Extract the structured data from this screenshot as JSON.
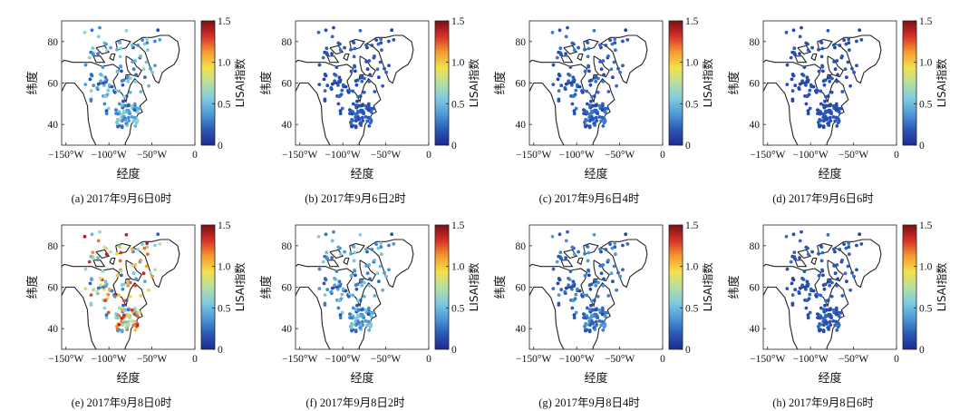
{
  "colors": {
    "land": "#ffffff",
    "coast": "#222222",
    "colormap": [
      "#1e2a8f",
      "#2a58b8",
      "#4d9ad6",
      "#7fcbe0",
      "#b6e0a1",
      "#f3e04a",
      "#f59a2e",
      "#d7302a",
      "#7a0f14"
    ]
  },
  "chart_data": [
    {
      "type": "scatter",
      "caption": "(a) 2017年9月6日0时",
      "xlabel": "经度",
      "ylabel": "纬度",
      "x_ticks": [
        "−150°W",
        "−100°W",
        "−50°W",
        "0"
      ],
      "y_ticks": [
        "40",
        "60",
        "80"
      ],
      "xlim": [
        -155,
        0
      ],
      "ylim": [
        30,
        90
      ],
      "colorbar": {
        "label": "LISAI指数",
        "range": [
          0,
          1.5
        ],
        "ticks": [
          "0",
          "0.5",
          "1.0",
          "1.5"
        ]
      },
      "value_range": [
        0.15,
        0.65
      ]
    },
    {
      "type": "scatter",
      "caption": "(b) 2017年9月6日2时",
      "xlabel": "经度",
      "ylabel": "纬度",
      "x_ticks": [
        "−150°W",
        "−100°W",
        "−50°W",
        "0"
      ],
      "y_ticks": [
        "40",
        "60",
        "80"
      ],
      "xlim": [
        -155,
        0
      ],
      "ylim": [
        30,
        90
      ],
      "colorbar": {
        "label": "LISAI指数",
        "range": [
          0,
          1.5
        ],
        "ticks": [
          "0",
          "0.5",
          "1.0",
          "1.5"
        ]
      },
      "value_range": [
        0.1,
        0.25
      ]
    },
    {
      "type": "scatter",
      "caption": "(c) 2017年9月6日4时",
      "xlabel": "经度",
      "ylabel": "纬度",
      "x_ticks": [
        "−150°W",
        "−100°W",
        "−50°W",
        "0"
      ],
      "y_ticks": [
        "40",
        "60",
        "80"
      ],
      "xlim": [
        -155,
        0
      ],
      "ylim": [
        30,
        90
      ],
      "colorbar": {
        "label": "LISAI指数",
        "range": [
          0,
          1.5
        ],
        "ticks": [
          "0",
          "0.5",
          "1.0",
          "1.5"
        ]
      },
      "value_range": [
        0.1,
        0.3
      ]
    },
    {
      "type": "scatter",
      "caption": "(d) 2017年9月6日6时",
      "xlabel": "经度",
      "ylabel": "纬度",
      "x_ticks": [
        "−150°W",
        "−100°W",
        "−50°W",
        "0"
      ],
      "y_ticks": [
        "40",
        "60",
        "80"
      ],
      "xlim": [
        -155,
        0
      ],
      "ylim": [
        30,
        90
      ],
      "colorbar": {
        "label": "LISAI指数",
        "range": [
          0,
          1.5
        ],
        "ticks": [
          "0",
          "0.5",
          "1.0",
          "1.5"
        ]
      },
      "value_range": [
        0.1,
        0.2
      ]
    },
    {
      "type": "scatter",
      "caption": "(e) 2017年9月8日0时",
      "xlabel": "经度",
      "ylabel": "纬度",
      "x_ticks": [
        "−150°W",
        "−100°W",
        "−50°W",
        "0"
      ],
      "y_ticks": [
        "40",
        "60",
        "80"
      ],
      "xlim": [
        -155,
        0
      ],
      "ylim": [
        30,
        90
      ],
      "colorbar": {
        "label": "LISAI指数",
        "range": [
          0,
          1.5
        ],
        "ticks": [
          "0",
          "0.5",
          "1.0",
          "1.5"
        ]
      },
      "value_range": [
        0.2,
        1.4
      ]
    },
    {
      "type": "scatter",
      "caption": "(f) 2017年9月8日2时",
      "xlabel": "经度",
      "ylabel": "纬度",
      "x_ticks": [
        "−150°W",
        "−100°W",
        "−50°W",
        "0"
      ],
      "y_ticks": [
        "40",
        "60",
        "80"
      ],
      "xlim": [
        -155,
        0
      ],
      "ylim": [
        30,
        90
      ],
      "colorbar": {
        "label": "LISAI指数",
        "range": [
          0,
          1.5
        ],
        "ticks": [
          "0",
          "0.5",
          "1.0",
          "1.5"
        ]
      },
      "value_range": [
        0.15,
        0.6
      ]
    },
    {
      "type": "scatter",
      "caption": "(g) 2017年9月8日4时",
      "xlabel": "经度",
      "ylabel": "纬度",
      "x_ticks": [
        "−150°W",
        "−100°W",
        "−50°W",
        "0"
      ],
      "y_ticks": [
        "40",
        "60",
        "80"
      ],
      "xlim": [
        -155,
        0
      ],
      "ylim": [
        30,
        90
      ],
      "colorbar": {
        "label": "LISAI指数",
        "range": [
          0,
          1.5
        ],
        "ticks": [
          "0",
          "0.5",
          "1.0",
          "1.5"
        ]
      },
      "value_range": [
        0.1,
        0.4
      ]
    },
    {
      "type": "scatter",
      "caption": "(h) 2017年9月8日6时",
      "xlabel": "经度",
      "ylabel": "纬度",
      "x_ticks": [
        "−150°W",
        "−100°W",
        "−50°W",
        "0"
      ],
      "y_ticks": [
        "40",
        "60",
        "80"
      ],
      "xlim": [
        -155,
        0
      ],
      "ylim": [
        30,
        90
      ],
      "colorbar": {
        "label": "LISAI指数",
        "range": [
          0,
          1.5
        ],
        "ticks": [
          "0",
          "0.5",
          "1.0",
          "1.5"
        ]
      },
      "value_range": [
        0.1,
        0.25
      ]
    }
  ]
}
